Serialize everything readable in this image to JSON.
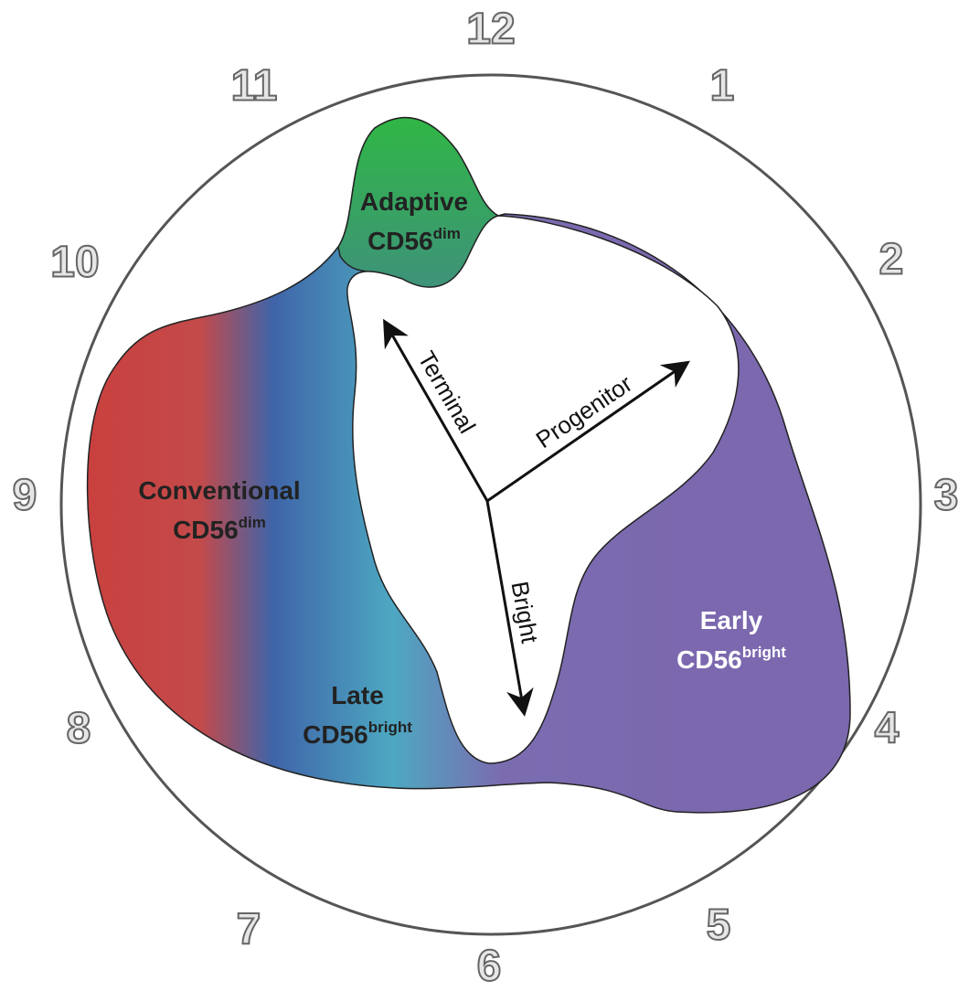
{
  "clock": {
    "numbers": [
      "12",
      "1",
      "2",
      "3",
      "4",
      "5",
      "6",
      "7",
      "8",
      "9",
      "10",
      "11"
    ]
  },
  "regions": [
    {
      "name": "Adaptive",
      "marker": "CD56",
      "superscript": "dim"
    },
    {
      "name": "Conventional",
      "marker": "CD56",
      "superscript": "dim"
    },
    {
      "name": "Late",
      "marker": "CD56",
      "superscript": "bright"
    },
    {
      "name": "Early",
      "marker": "CD56",
      "superscript": "bright"
    }
  ],
  "axes": [
    "Terminal",
    "Progenitor",
    "Bright"
  ]
}
